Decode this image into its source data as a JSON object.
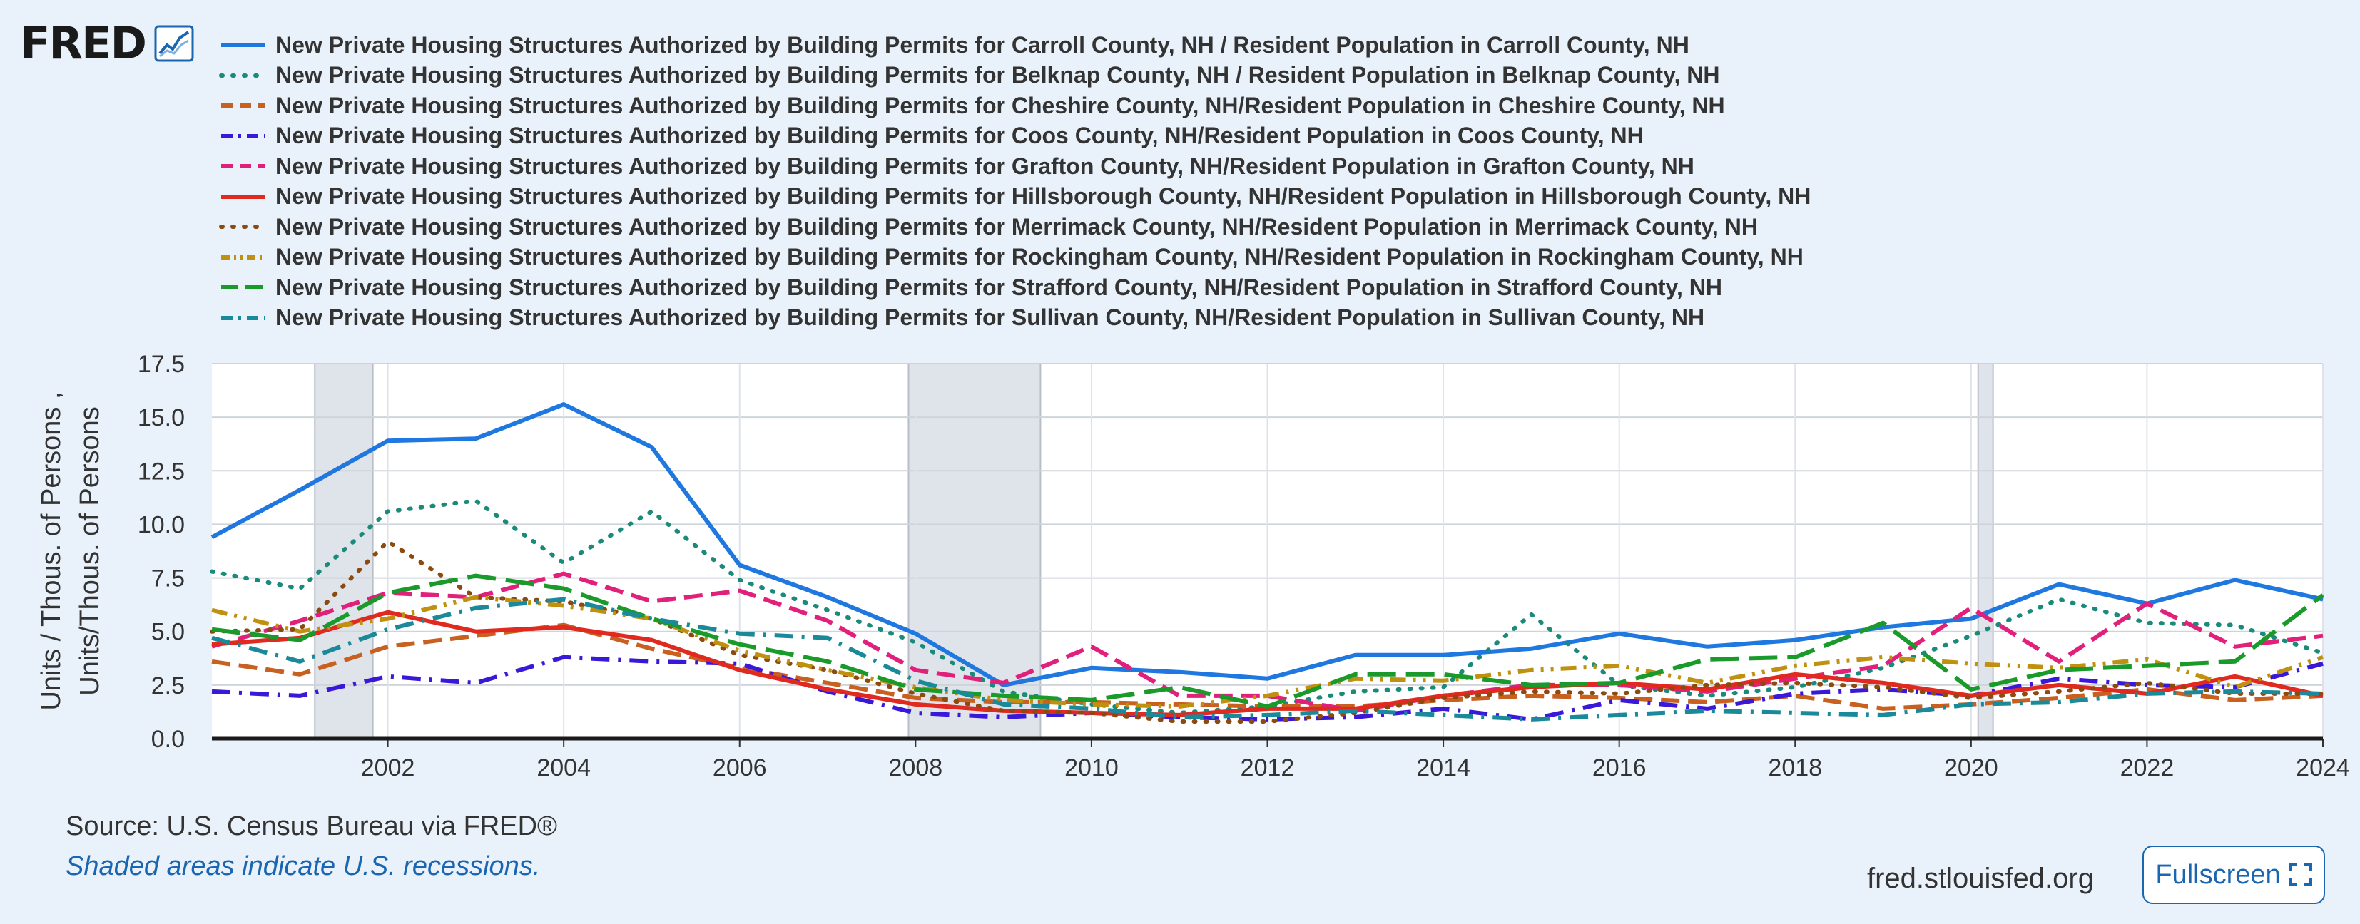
{
  "logo": {
    "text": "FRED"
  },
  "footer": {
    "source": "Source: U.S. Census Bureau via FRED®",
    "recession_note": "Shaded areas indicate U.S. recessions.",
    "site": "fred.stlouisfed.org",
    "fullscreen_label": "Fullscreen"
  },
  "chart_data": {
    "type": "line",
    "ylabel": "Units / Thous. of Persons ,",
    "ylabel2": "Units/Thous. of Persons",
    "xlim": [
      2000,
      2024
    ],
    "ylim": [
      0,
      17.5
    ],
    "yticks": [
      "0.0",
      "2.5",
      "5.0",
      "7.5",
      "10.0",
      "12.5",
      "15.0",
      "17.5"
    ],
    "xticks": [
      "2002",
      "2004",
      "2006",
      "2008",
      "2010",
      "2012",
      "2014",
      "2016",
      "2018",
      "2020",
      "2022",
      "2024"
    ],
    "recessions": [
      [
        2001.17,
        2001.83
      ],
      [
        2007.92,
        2009.42
      ],
      [
        2020.08,
        2020.25
      ]
    ],
    "x": [
      2000,
      2001,
      2002,
      2003,
      2004,
      2005,
      2006,
      2007,
      2008,
      2009,
      2010,
      2011,
      2012,
      2013,
      2014,
      2015,
      2016,
      2017,
      2018,
      2019,
      2020,
      2021,
      2022,
      2023,
      2024
    ],
    "series": [
      {
        "name": "New Private Housing Structures Authorized by Building Permits for Carroll County, NH / Resident Population in Carroll County, NH",
        "color": "#1f77e0",
        "dash": "solid",
        "width": 6,
        "values": [
          9.4,
          11.6,
          13.9,
          14.0,
          15.6,
          13.6,
          8.1,
          6.6,
          4.9,
          2.5,
          3.3,
          3.1,
          2.8,
          3.9,
          3.9,
          4.2,
          4.9,
          4.3,
          4.6,
          5.2,
          5.6,
          7.2,
          6.3,
          7.4,
          6.5
        ]
      },
      {
        "name": "New Private Housing Structures Authorized by Building Permits for Belknap County, NH / Resident Population in Belknap County, NH",
        "color": "#1a8a7a",
        "dash": "dot",
        "width": 6,
        "values": [
          7.8,
          7.0,
          10.6,
          11.1,
          8.2,
          10.6,
          7.4,
          6.0,
          4.5,
          2.2,
          1.6,
          1.2,
          1.5,
          2.2,
          2.4,
          5.8,
          2.5,
          2.0,
          2.4,
          3.3,
          4.8,
          6.5,
          5.4,
          5.3,
          4.0
        ]
      },
      {
        "name": "New Private Housing Structures Authorized by Building Permits for Cheshire County, NH/Resident Population in Cheshire County, NH",
        "color": "#c86020",
        "dash": "dash",
        "width": 6,
        "values": [
          3.6,
          3.0,
          4.3,
          4.8,
          5.3,
          4.2,
          3.3,
          2.6,
          1.9,
          1.7,
          1.7,
          1.6,
          1.5,
          1.5,
          1.8,
          2.0,
          1.9,
          1.7,
          2.0,
          1.4,
          1.6,
          1.9,
          2.3,
          1.8,
          2.0
        ]
      },
      {
        "name": "New Private Housing Structures Authorized by Building Permits for Coos County, NH/Resident Population in Coos County, NH",
        "color": "#3a18d8",
        "dash": "dashdot",
        "width": 6,
        "values": [
          2.2,
          2.0,
          2.9,
          2.6,
          3.8,
          3.6,
          3.5,
          2.2,
          1.2,
          1.0,
          1.2,
          1.0,
          0.9,
          1.0,
          1.4,
          0.9,
          1.8,
          1.4,
          2.1,
          2.3,
          2.0,
          2.8,
          2.5,
          2.4,
          3.5
        ]
      },
      {
        "name": "New Private Housing Structures Authorized by Building Permits for Grafton County, NH/Resident Population in Grafton County, NH",
        "color": "#e0207a",
        "dash": "dash",
        "width": 6,
        "values": [
          4.3,
          5.5,
          6.8,
          6.6,
          7.7,
          6.4,
          6.9,
          5.5,
          3.2,
          2.6,
          4.3,
          2.0,
          2.0,
          1.3,
          2.0,
          2.5,
          2.5,
          2.2,
          2.8,
          3.4,
          6.1,
          3.6,
          6.3,
          4.3,
          4.8
        ]
      },
      {
        "name": "New Private Housing Structures Authorized by Building Permits for Hillsborough County, NH/Resident Population in Hillsborough County, NH",
        "color": "#e02a20",
        "dash": "solid",
        "width": 6,
        "values": [
          4.4,
          4.7,
          5.9,
          5.0,
          5.2,
          4.6,
          3.2,
          2.3,
          1.6,
          1.3,
          1.2,
          1.1,
          1.4,
          1.4,
          2.0,
          2.4,
          2.6,
          2.3,
          3.0,
          2.6,
          2.0,
          2.5,
          2.1,
          2.9,
          2.0
        ]
      },
      {
        "name": "New Private Housing Structures Authorized by Building Permits for Merrimack County, NH/Resident Population in Merrimack County, NH",
        "color": "#8a4a10",
        "dash": "dot",
        "width": 6,
        "values": [
          5.0,
          5.1,
          9.2,
          6.6,
          6.4,
          5.6,
          3.9,
          3.2,
          2.1,
          1.3,
          1.2,
          0.8,
          0.8,
          1.2,
          1.9,
          2.2,
          2.1,
          2.5,
          2.6,
          2.4,
          1.9,
          2.2,
          2.6,
          2.1,
          2.1
        ]
      },
      {
        "name": "New Private Housing Structures Authorized by Building Permits for Rockingham County, NH/Resident Population in Rockingham County, NH",
        "color": "#c09010",
        "dash": "dashdotdot",
        "width": 6,
        "values": [
          6.0,
          5.0,
          5.6,
          6.6,
          6.2,
          5.6,
          4.1,
          3.2,
          2.4,
          1.8,
          1.6,
          1.5,
          2.0,
          2.8,
          2.7,
          3.2,
          3.4,
          2.6,
          3.4,
          3.8,
          3.5,
          3.3,
          3.7,
          2.4,
          3.8
        ]
      },
      {
        "name": "New Private Housing Structures Authorized by Building Permits for Strafford County, NH/Resident Population in Strafford County, NH",
        "color": "#1a9a2a",
        "dash": "longdash",
        "width": 6,
        "values": [
          5.1,
          4.6,
          6.8,
          7.6,
          7.0,
          5.6,
          4.4,
          3.6,
          2.3,
          2.0,
          1.8,
          2.4,
          1.5,
          3.0,
          3.0,
          2.5,
          2.6,
          3.7,
          3.8,
          5.4,
          2.3,
          3.2,
          3.4,
          3.6,
          6.7
        ]
      },
      {
        "name": "New Private Housing Structures Authorized by Building Permits for Sullivan County, NH/Resident Population in Sullivan County, NH",
        "color": "#1a8a9a",
        "dash": "dashdot",
        "width": 6,
        "values": [
          4.7,
          3.6,
          5.1,
          6.1,
          6.5,
          5.6,
          4.9,
          4.7,
          2.7,
          1.6,
          1.4,
          1.0,
          1.1,
          1.3,
          1.1,
          0.9,
          1.1,
          1.3,
          1.2,
          1.1,
          1.6,
          1.7,
          2.1,
          2.2,
          2.1
        ]
      }
    ]
  }
}
